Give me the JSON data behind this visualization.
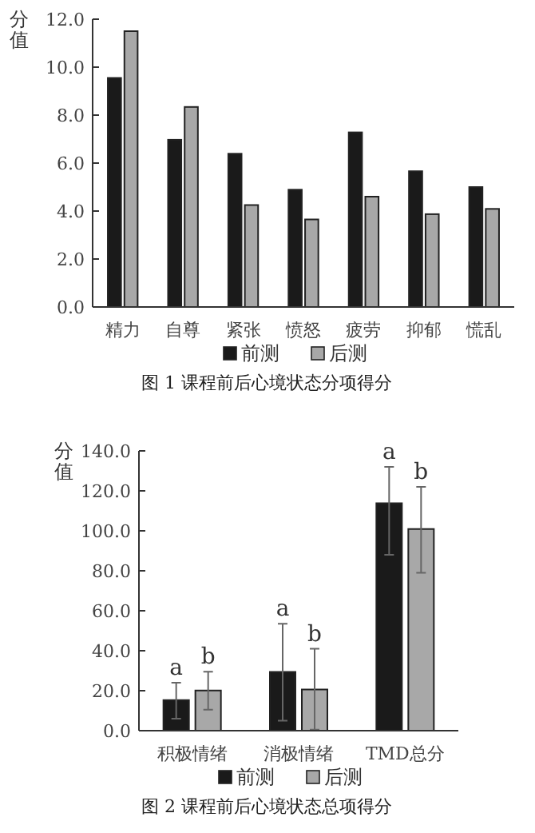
{
  "chart_data": [
    {
      "type": "bar",
      "title": "图 1  课程前后心境状态分项得分",
      "ylabel": "分值",
      "categories": [
        "精力",
        "自尊",
        "紧张",
        "愤怒",
        "疲劳",
        "抑郁",
        "慌乱"
      ],
      "series": [
        {
          "name": "前测",
          "color": "#1a1a1a",
          "values": [
            9.55,
            6.97,
            6.39,
            4.89,
            7.28,
            5.66,
            5.0
          ]
        },
        {
          "name": "后测",
          "color": "#a8a8a8",
          "values": [
            11.5,
            8.34,
            4.25,
            3.65,
            4.6,
            3.87,
            4.09
          ]
        }
      ],
      "ylim": [
        0,
        12
      ],
      "yticks": [
        {
          "value": 0,
          "label": "0.0"
        },
        {
          "value": 2,
          "label": "2.0"
        },
        {
          "value": 4,
          "label": "4.0"
        },
        {
          "value": 6,
          "label": "6.0"
        },
        {
          "value": 8,
          "label": "8.0"
        },
        {
          "value": 10,
          "label": "10.0"
        },
        {
          "value": 12,
          "label": "12.0"
        }
      ],
      "grid": false,
      "legend": "bottom"
    },
    {
      "type": "bar",
      "title": "图 2  课程前后心境状态总项得分",
      "ylabel": "分值",
      "categories": [
        "积极情绪",
        "消极情绪",
        "TMD总分"
      ],
      "series": [
        {
          "name": "前测",
          "color": "#1a1a1a",
          "values": [
            15.3,
            29.4,
            113.8
          ],
          "errors": [
            [
              6,
              24
            ],
            [
              5,
              53.5
            ],
            [
              88,
              132
            ]
          ]
        },
        {
          "name": "后测",
          "color": "#a8a8a8",
          "values": [
            20.1,
            20.6,
            100.9
          ],
          "errors": [
            [
              10.5,
              29.5
            ],
            [
              0.5,
              41
            ],
            [
              79,
              122
            ]
          ]
        }
      ],
      "ylim": [
        0,
        140
      ],
      "yticks": [
        {
          "value": 0,
          "label": "0.0"
        },
        {
          "value": 20,
          "label": "20.0"
        },
        {
          "value": 40,
          "label": "40.0"
        },
        {
          "value": 60,
          "label": "60.0"
        },
        {
          "value": 80,
          "label": "80.0"
        },
        {
          "value": 100,
          "label": "100.0"
        },
        {
          "value": 120,
          "label": "120.0"
        },
        {
          "value": 140,
          "label": "140.0"
        }
      ],
      "grid": false,
      "legend": "bottom",
      "annotations": [
        "a",
        "b",
        "a",
        "b",
        "a",
        "b"
      ]
    }
  ]
}
